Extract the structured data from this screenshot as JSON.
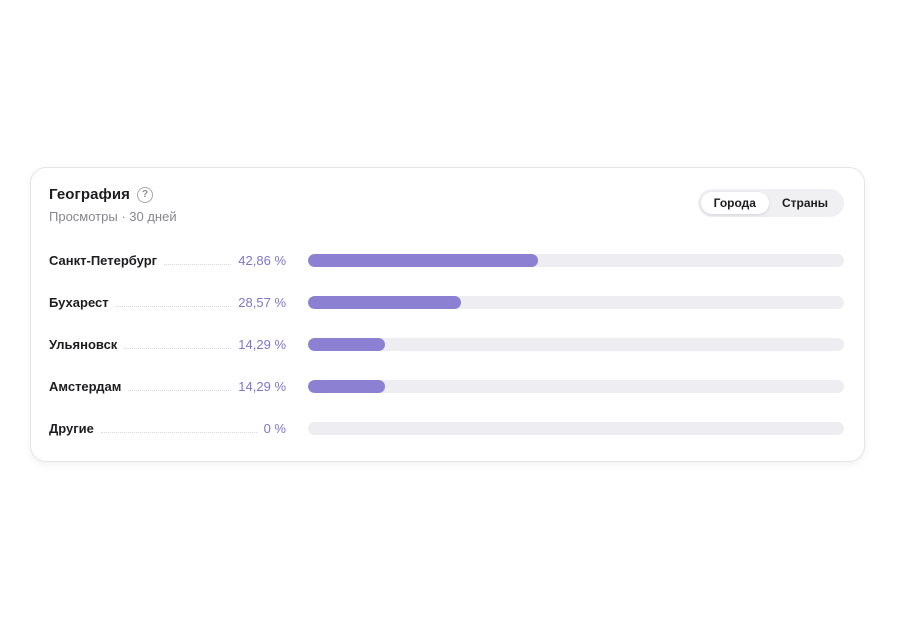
{
  "card": {
    "title": "География",
    "help_glyph": "?",
    "subtitle": "Просмотры · 30 дней",
    "toggle": {
      "options": [
        {
          "label": "Города",
          "selected": true
        },
        {
          "label": "Страны",
          "selected": false
        }
      ]
    },
    "rows": [
      {
        "label": "Санкт-Петербург",
        "value_label": "42,86 %",
        "percent": 42.86
      },
      {
        "label": "Бухарест",
        "value_label": "28,57 %",
        "percent": 28.57
      },
      {
        "label": "Ульяновск",
        "value_label": "14,29 %",
        "percent": 14.29
      },
      {
        "label": "Амстердам",
        "value_label": "14,29 %",
        "percent": 14.29
      },
      {
        "label": "Другие",
        "value_label": "0 %",
        "percent": 0
      }
    ],
    "colors": {
      "bar_fill": "#8b80d1",
      "bar_track": "#eeedf2",
      "value_text": "#7d76cb"
    }
  },
  "chart_data": {
    "type": "bar",
    "orientation": "horizontal",
    "title": "География",
    "subtitle": "Просмотры · 30 дней",
    "categories": [
      "Санкт-Петербург",
      "Бухарест",
      "Ульяновск",
      "Амстердам",
      "Другие"
    ],
    "values": [
      42.86,
      28.57,
      14.29,
      14.29,
      0
    ],
    "value_labels": [
      "42,86 %",
      "28,57 %",
      "14,29 %",
      "14,29 %",
      "0 %"
    ],
    "xlim": [
      0,
      100
    ],
    "xlabel": "",
    "ylabel": "",
    "grid": false,
    "legend": false,
    "bar_color": "#8b80d1",
    "track_color": "#eeedf2"
  }
}
